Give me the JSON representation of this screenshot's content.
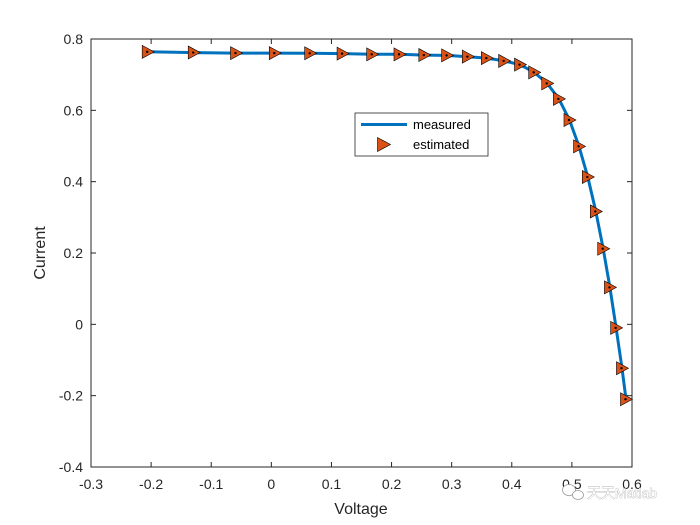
{
  "chart_data": {
    "type": "line",
    "title": "",
    "xlabel": "Voltage",
    "ylabel": "Current",
    "xlim": [
      -0.3,
      0.6
    ],
    "ylim": [
      -0.4,
      0.8
    ],
    "xticks": [
      "-0.3",
      "-0.2",
      "-0.1",
      "0",
      "0.1",
      "0.2",
      "0.3",
      "0.4",
      "0.5",
      "0.6"
    ],
    "yticks": [
      "-0.4",
      "-0.2",
      "0",
      "0.2",
      "0.4",
      "0.6",
      "0.8"
    ],
    "xtick_values": [
      -0.3,
      -0.2,
      -0.1,
      0,
      0.1,
      0.2,
      0.3,
      0.4,
      0.5,
      0.6
    ],
    "ytick_values": [
      -0.4,
      -0.2,
      0,
      0.2,
      0.4,
      0.6,
      0.8
    ],
    "grid": false,
    "legend_position": "upper-center",
    "series": [
      {
        "name": "measured",
        "style": "solid-line",
        "color": "#0072BD",
        "x": [
          -0.2057,
          -0.1291,
          -0.0588,
          0.0057,
          0.0646,
          0.1185,
          0.1678,
          0.2132,
          0.2545,
          0.2924,
          0.3269,
          0.3585,
          0.3873,
          0.4137,
          0.4373,
          0.459,
          0.4784,
          0.496,
          0.5119,
          0.5265,
          0.5398,
          0.5521,
          0.5633,
          0.5736,
          0.5833,
          0.59
        ],
        "y": [
          0.764,
          0.762,
          0.7605,
          0.7605,
          0.76,
          0.759,
          0.757,
          0.757,
          0.755,
          0.754,
          0.7505,
          0.7465,
          0.7385,
          0.728,
          0.7065,
          0.6755,
          0.632,
          0.573,
          0.499,
          0.413,
          0.3165,
          0.212,
          0.1035,
          -0.01,
          -0.123,
          -0.21
        ]
      },
      {
        "name": "estimated",
        "style": "triangle-right-markers",
        "color": "#D95319",
        "x": [
          -0.2057,
          -0.1291,
          -0.0588,
          0.0057,
          0.0646,
          0.1185,
          0.1678,
          0.2132,
          0.2545,
          0.2924,
          0.3269,
          0.3585,
          0.3873,
          0.4137,
          0.4373,
          0.459,
          0.4784,
          0.496,
          0.5119,
          0.5265,
          0.5398,
          0.5521,
          0.5633,
          0.5736,
          0.5833,
          0.59
        ],
        "y": [
          0.764,
          0.762,
          0.7605,
          0.7605,
          0.76,
          0.759,
          0.757,
          0.757,
          0.755,
          0.754,
          0.7505,
          0.7465,
          0.7385,
          0.728,
          0.7065,
          0.6755,
          0.632,
          0.573,
          0.499,
          0.413,
          0.3165,
          0.212,
          0.1035,
          -0.01,
          -0.123,
          -0.21
        ]
      }
    ]
  },
  "watermark": {
    "text": "天天Matlab"
  }
}
